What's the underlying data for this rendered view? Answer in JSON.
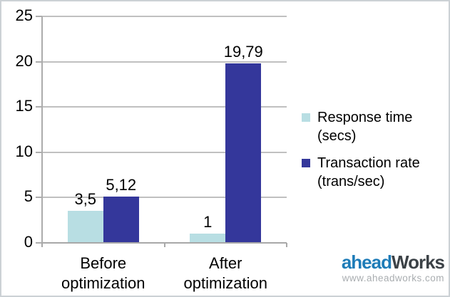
{
  "chart_data": {
    "type": "bar",
    "title": "",
    "xlabel": "",
    "ylabel": "",
    "categories": [
      "Before optimization",
      "After optimization"
    ],
    "series": [
      {
        "name": "Response time (secs)",
        "color": "#b8dee3",
        "values": [
          3.5,
          1
        ],
        "value_labels": [
          "3,5",
          "1"
        ]
      },
      {
        "name": "Transaction rate (trans/sec)",
        "color": "#34379b",
        "values": [
          5.12,
          19.79
        ],
        "value_labels": [
          "5,12",
          "19,79"
        ]
      }
    ],
    "ylim": [
      0,
      25
    ],
    "yticks": [
      0,
      5,
      10,
      15,
      20,
      25
    ],
    "ytick_labels": [
      "0",
      "5",
      "10",
      "15",
      "20",
      "25"
    ],
    "grid": true,
    "legend_position": "right",
    "decimal_separator": ","
  },
  "colors": {
    "grid": "#c0c0c0",
    "axis": "#a8a8a8",
    "text": "#000000",
    "figure_border": "#ccd1d5"
  },
  "branding": {
    "logo_part1": "ahead",
    "logo_part2": "Works",
    "logo_part1_color": "#1e7cb8",
    "logo_part2_color": "#3c4247",
    "website": "www.aheadworks.com",
    "website_color": "#a9adb0"
  }
}
